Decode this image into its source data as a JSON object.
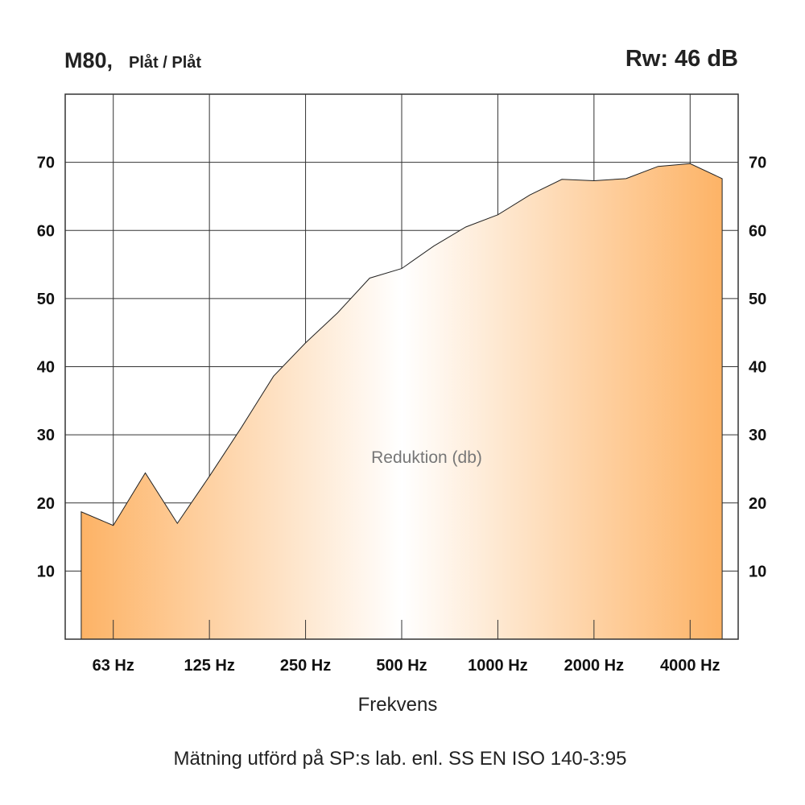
{
  "header": {
    "title": "M80,",
    "subtitle": "Plåt / Plåt",
    "rating": "Rw: 46 dB"
  },
  "footer": {
    "note": "Mätning utförd på SP:s lab. enl. SS EN ISO 140-3:95"
  },
  "colors": {
    "fill_edge": "#fdb366",
    "fill_center": "#ffffff",
    "grid": "#333333",
    "outline": "#222222"
  },
  "chart_data": {
    "type": "area",
    "xlabel": "Frekvens",
    "series_label": "Reduktion (db)",
    "x_tick_labels": [
      "63 Hz",
      "125 Hz",
      "250 Hz",
      "500 Hz",
      "1000 Hz",
      "2000 Hz",
      "4000 Hz"
    ],
    "x_tick_positions": [
      3,
      6,
      9,
      12,
      15,
      18,
      21
    ],
    "y_ticks": [
      10,
      20,
      30,
      40,
      50,
      60,
      70
    ],
    "xlim": [
      1.5,
      22.5
    ],
    "ylim": [
      0,
      80
    ],
    "grid": true,
    "y_axis_both_sides": true,
    "series": [
      {
        "x": [
          2,
          3,
          4,
          5,
          6,
          7,
          8,
          9,
          10,
          11,
          12,
          13,
          14,
          15,
          16,
          17,
          18,
          19,
          20,
          21,
          22
        ],
        "values": [
          18.7,
          16.7,
          24.4,
          17.0,
          23.9,
          31.1,
          38.6,
          43.5,
          47.9,
          53.0,
          54.4,
          57.7,
          60.5,
          62.3,
          65.2,
          67.5,
          67.3,
          67.6,
          69.4,
          69.8,
          67.6
        ]
      }
    ]
  }
}
